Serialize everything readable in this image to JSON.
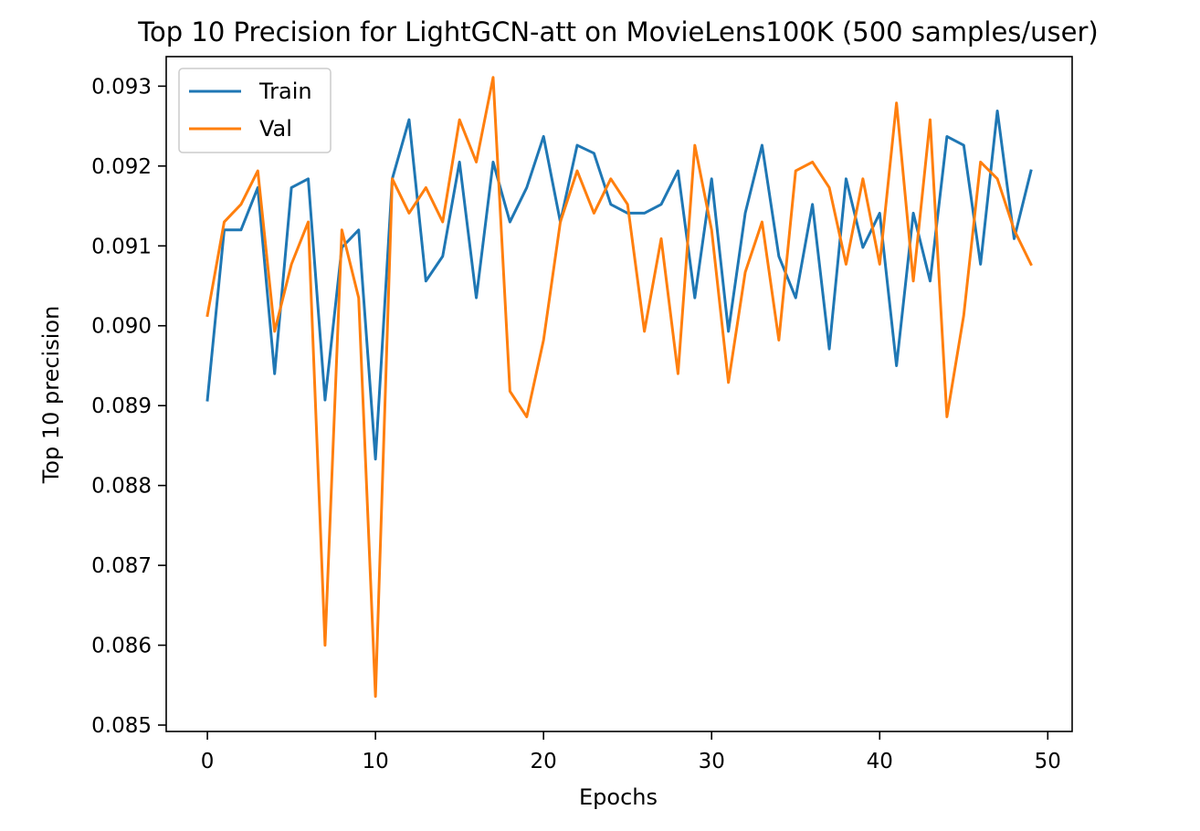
{
  "chart_data": {
    "type": "line",
    "title": "Top 10 Precision for LightGCN-att on MovieLens100K (500 samples/user)",
    "xlabel": "Epochs",
    "ylabel": "Top 10 precision",
    "xlim": [
      -2.45,
      51.45
    ],
    "ylim": [
      0.08492,
      0.09337
    ],
    "xticks": [
      0,
      10,
      20,
      30,
      40,
      50
    ],
    "yticks": [
      0.085,
      0.086,
      0.087,
      0.088,
      0.089,
      0.09,
      0.091,
      0.092,
      0.093
    ],
    "ytick_labels": [
      "0.085",
      "0.086",
      "0.087",
      "0.088",
      "0.089",
      "0.090",
      "0.091",
      "0.092",
      "0.093"
    ],
    "grid": false,
    "legend_position": "upper-left",
    "x": [
      0,
      1,
      2,
      3,
      4,
      5,
      6,
      7,
      8,
      9,
      10,
      11,
      12,
      13,
      14,
      15,
      16,
      17,
      18,
      19,
      20,
      21,
      22,
      23,
      24,
      25,
      26,
      27,
      28,
      29,
      30,
      31,
      32,
      33,
      34,
      35,
      36,
      37,
      38,
      39,
      40,
      41,
      42,
      43,
      44,
      45,
      46,
      47,
      48,
      49
    ],
    "series": [
      {
        "name": "Train",
        "color": "#1f77b4",
        "values": [
          0.08907,
          0.0912,
          0.0912,
          0.09173,
          0.0894,
          0.09173,
          0.09184,
          0.08907,
          0.09098,
          0.0912,
          0.08833,
          0.09184,
          0.09258,
          0.09056,
          0.09087,
          0.09205,
          0.09035,
          0.09205,
          0.0913,
          0.09173,
          0.09237,
          0.0913,
          0.09226,
          0.09216,
          0.09152,
          0.09141,
          0.09141,
          0.09152,
          0.09194,
          0.09035,
          0.09184,
          0.08993,
          0.09141,
          0.09226,
          0.09087,
          0.09035,
          0.09152,
          0.08971,
          0.09184,
          0.09098,
          0.09141,
          0.0895,
          0.09141,
          0.09056,
          0.09237,
          0.09226,
          0.09077,
          0.09269,
          0.09109,
          0.09194
        ]
      },
      {
        "name": "Val",
        "color": "#ff7f0e",
        "values": [
          0.09013,
          0.0913,
          0.09152,
          0.09194,
          0.08993,
          0.09077,
          0.0913,
          0.086,
          0.0912,
          0.09035,
          0.08536,
          0.09184,
          0.09141,
          0.09173,
          0.0913,
          0.09258,
          0.09205,
          0.09311,
          0.08918,
          0.08886,
          0.08982,
          0.0913,
          0.09194,
          0.09141,
          0.09184,
          0.09152,
          0.08993,
          0.09109,
          0.0894,
          0.09226,
          0.0912,
          0.08929,
          0.09067,
          0.0913,
          0.08982,
          0.09194,
          0.09205,
          0.09173,
          0.09077,
          0.09184,
          0.09077,
          0.09279,
          0.09056,
          0.09258,
          0.08886,
          0.09013,
          0.09205,
          0.09184,
          0.0912,
          0.09077
        ]
      }
    ]
  }
}
